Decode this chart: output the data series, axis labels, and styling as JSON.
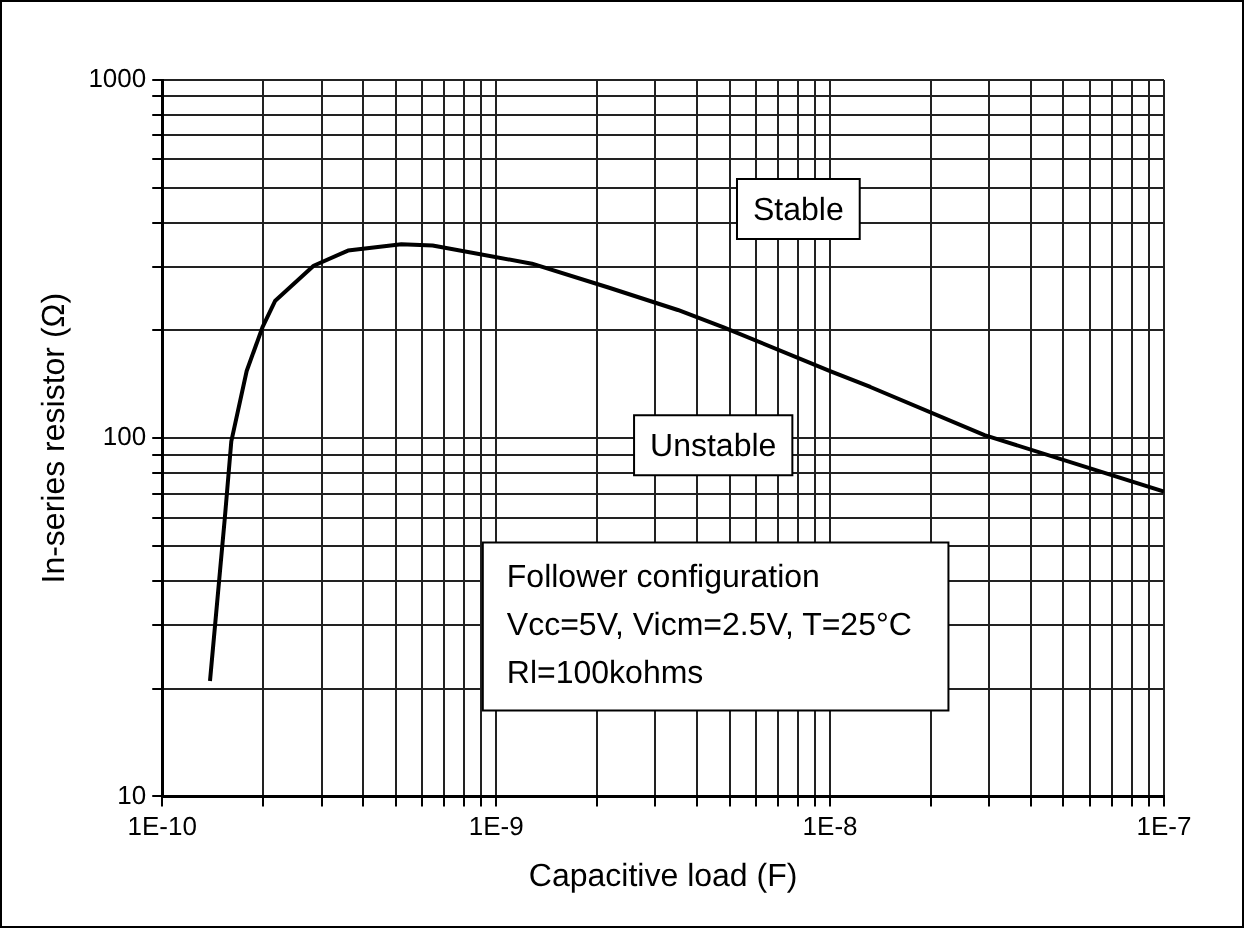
{
  "chart_data": {
    "type": "line",
    "xlabel": "Capacitive load (F)",
    "ylabel": "In-series resistor (Ω)",
    "log": "xy",
    "grid": true,
    "legend": false,
    "marker": "none",
    "line_style": "solid",
    "xlim": [
      1e-10,
      1e-07
    ],
    "ylim": [
      10,
      1000
    ],
    "xticks": [
      {
        "value": 1e-10,
        "label": "1E-10"
      },
      {
        "value": 2e-10,
        "label": null
      },
      {
        "value": 3e-10,
        "label": null
      },
      {
        "value": 4e-10,
        "label": null
      },
      {
        "value": 5e-10,
        "label": null
      },
      {
        "value": 6e-10,
        "label": null
      },
      {
        "value": 7e-10,
        "label": null
      },
      {
        "value": 8e-10,
        "label": null
      },
      {
        "value": 9e-10,
        "label": null
      },
      {
        "value": 1e-09,
        "label": "1E-9"
      },
      {
        "value": 2e-09,
        "label": null
      },
      {
        "value": 3e-09,
        "label": null
      },
      {
        "value": 4e-09,
        "label": null
      },
      {
        "value": 5e-09,
        "label": null
      },
      {
        "value": 6e-09,
        "label": null
      },
      {
        "value": 7e-09,
        "label": null
      },
      {
        "value": 8e-09,
        "label": null
      },
      {
        "value": 9e-09,
        "label": null
      },
      {
        "value": 1e-08,
        "label": "1E-8"
      },
      {
        "value": 2e-08,
        "label": null
      },
      {
        "value": 3e-08,
        "label": null
      },
      {
        "value": 4e-08,
        "label": null
      },
      {
        "value": 5e-08,
        "label": null
      },
      {
        "value": 6e-08,
        "label": null
      },
      {
        "value": 7e-08,
        "label": null
      },
      {
        "value": 8e-08,
        "label": null
      },
      {
        "value": 9e-08,
        "label": null
      },
      {
        "value": 1e-07,
        "label": "1E-7"
      }
    ],
    "yticks": [
      10,
      {
        "value": 20,
        "label": null
      },
      {
        "value": 30,
        "label": null
      },
      {
        "value": 40,
        "label": null
      },
      {
        "value": 50,
        "label": null
      },
      {
        "value": 60,
        "label": null
      },
      {
        "value": 70,
        "label": null
      },
      {
        "value": 80,
        "label": null
      },
      {
        "value": 90,
        "label": null
      },
      100,
      {
        "value": 200,
        "label": null
      },
      {
        "value": 300,
        "label": null
      },
      {
        "value": 400,
        "label": null
      },
      {
        "value": 500,
        "label": null
      },
      {
        "value": 600,
        "label": null
      },
      {
        "value": 700,
        "label": null
      },
      {
        "value": 800,
        "label": null
      },
      {
        "value": 900,
        "label": null
      },
      1000
    ],
    "series": [
      {
        "color": "#000000",
        "x": [
          1.39e-10,
          1.54e-10,
          1.61e-10,
          1.79e-10,
          2e-10,
          2.18e-10,
          2.84e-10,
          3.6e-10,
          5.2e-10,
          6.45e-10,
          1.28e-09,
          2.18e-09,
          3.5e-09,
          4.8e-09,
          1e-08,
          1.32e-08,
          2.9e-08,
          1e-07
        ],
        "values": [
          21,
          60,
          98,
          154,
          205,
          242,
          303,
          334,
          348,
          345,
          307,
          263,
          228,
          204,
          154,
          139,
          102,
          71
        ]
      }
    ],
    "annotations": [
      "Stable",
      "Unstable",
      "Follower configuration",
      "Vcc=5V, Vicm=2.5V, T=25°C",
      "Rl=100kohms"
    ]
  }
}
